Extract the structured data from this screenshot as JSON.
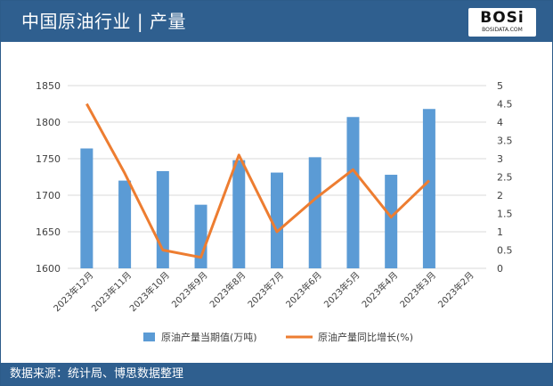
{
  "header": {
    "title": "中国原油行业 | 产量",
    "logo_text": "BOSi",
    "logo_subtext": "BOSIDATA.COM"
  },
  "footer": {
    "source": "数据来源：统计局、博思数据整理"
  },
  "colors": {
    "header_bg": "#2f5f8f",
    "bar": "#5b9bd5",
    "line": "#ed7d31",
    "gridline": "#d9d9d9"
  },
  "chart_data": {
    "type": "bar+line",
    "categories": [
      "2023年12月",
      "2023年11月",
      "2023年10月",
      "2023年9月",
      "2023年8月",
      "2023年7月",
      "2023年6月",
      "2023年5月",
      "2023年4月",
      "2023年3月",
      "2023年2月"
    ],
    "series": [
      {
        "name": "原油产量当期值(万吨)",
        "type": "bar",
        "axis": "left",
        "values": [
          1764,
          1720,
          1733,
          1687,
          1748,
          1731,
          1752,
          1807,
          1728,
          1818,
          null
        ]
      },
      {
        "name": "原油产量同比增长(%)",
        "type": "line",
        "axis": "right",
        "values": [
          4.5,
          2.6,
          0.5,
          0.3,
          3.1,
          1.0,
          1.9,
          2.7,
          1.4,
          2.4,
          null
        ]
      }
    ],
    "yleft": {
      "ylim": [
        1600,
        1850
      ],
      "ticks": [
        1600,
        1650,
        1700,
        1750,
        1800,
        1850
      ]
    },
    "yright": {
      "ylim": [
        0,
        5
      ],
      "ticks": [
        "0",
        "0.5",
        "1",
        "1.5",
        "2",
        "2.5",
        "3",
        "3.5",
        "4",
        "4.5",
        "5"
      ]
    },
    "grid": "horizontal",
    "legend": "bottom"
  }
}
